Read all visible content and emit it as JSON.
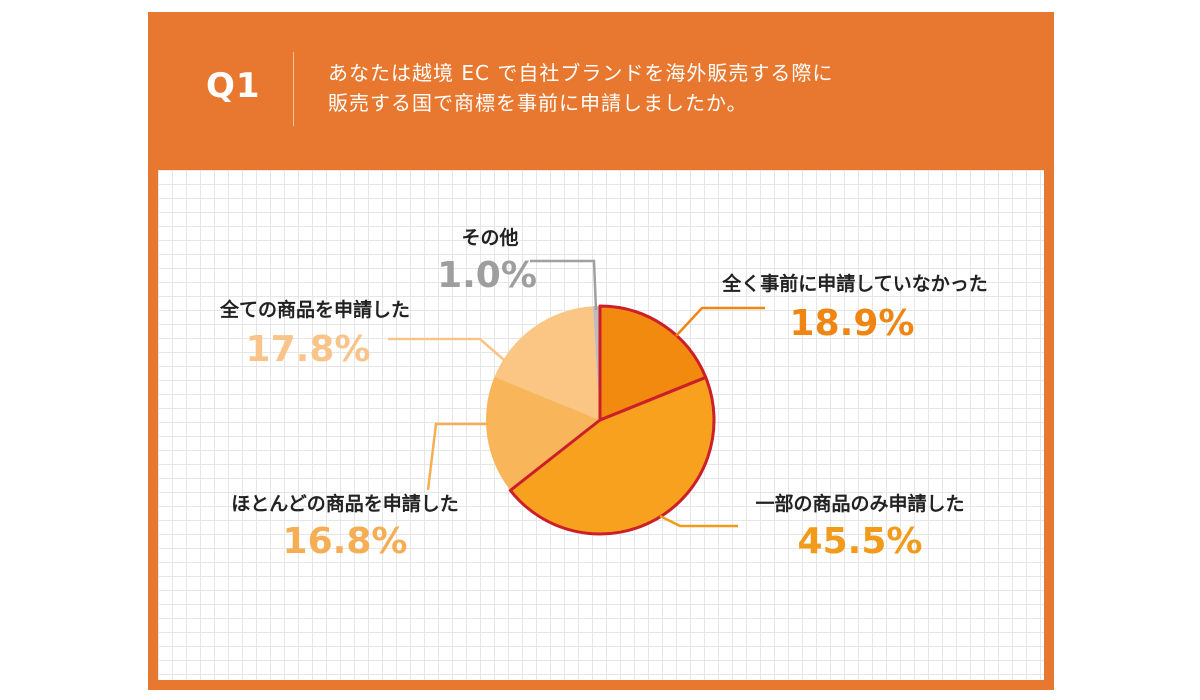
{
  "header": {
    "q_label": "Q1",
    "question_line1": "あなたは越境 EC で自社ブランドを海外販売する際に",
    "question_line2": "販売する国で商標を事前に申請しましたか。"
  },
  "colors": {
    "frame": "#e8782f",
    "outline": "#cc1f2a",
    "leader_gray": "#a0a0a0"
  },
  "chart_data": {
    "type": "pie",
    "title": "",
    "slices": [
      {
        "label": "全く事前に申請していなかった",
        "value": 18.9,
        "value_text": "18.9%",
        "color": "#f38a10",
        "label_color": "#ef8512",
        "highlighted": true
      },
      {
        "label": "一部の商品のみ申請した",
        "value": 45.5,
        "value_text": "45.5%",
        "color": "#f7a11e",
        "label_color": "#f29a1a",
        "highlighted": true
      },
      {
        "label": "ほとんどの商品を申請した",
        "value": 16.8,
        "value_text": "16.8%",
        "color": "#f8b55a",
        "label_color": "#f6ae54",
        "highlighted": false
      },
      {
        "label": "全ての商品を申請した",
        "value": 17.8,
        "value_text": "17.8%",
        "color": "#fbc583",
        "label_color": "#f9c48a",
        "highlighted": false
      },
      {
        "label": "その他",
        "value": 1.0,
        "value_text": "1.0%",
        "color": "#bdbdbd",
        "label_color": "#9e9e9e",
        "highlighted": false
      }
    ]
  }
}
